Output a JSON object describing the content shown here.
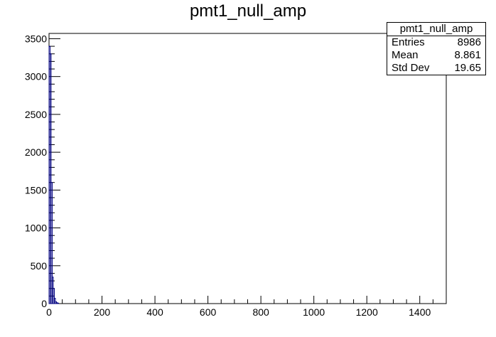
{
  "chart_data": {
    "type": "bar",
    "title": "pmt1_null_amp",
    "xlabel": "",
    "ylabel": "",
    "xlim": [
      0,
      1500
    ],
    "ylim": [
      0,
      3570
    ],
    "x_ticks": [
      0,
      200,
      400,
      600,
      800,
      1000,
      1200,
      1400
    ],
    "y_ticks": [
      0,
      500,
      1000,
      1500,
      2000,
      2500,
      3000,
      3500
    ],
    "bin_width": 4,
    "bins": [
      {
        "x": 0,
        "value": 3400
      },
      {
        "x": 4,
        "value": 3300
      },
      {
        "x": 8,
        "value": 1600
      },
      {
        "x": 12,
        "value": 350
      },
      {
        "x": 16,
        "value": 200
      },
      {
        "x": 20,
        "value": 70
      },
      {
        "x": 24,
        "value": 25
      },
      {
        "x": 28,
        "value": 12
      },
      {
        "x": 32,
        "value": 6
      }
    ],
    "line_color": "#000080",
    "stats": {
      "name": "pmt1_null_amp",
      "rows": [
        {
          "label": "Entries",
          "value": "8986"
        },
        {
          "label": "Mean",
          "value": "8.861"
        },
        {
          "label": "Std Dev",
          "value": "19.65"
        }
      ]
    }
  }
}
